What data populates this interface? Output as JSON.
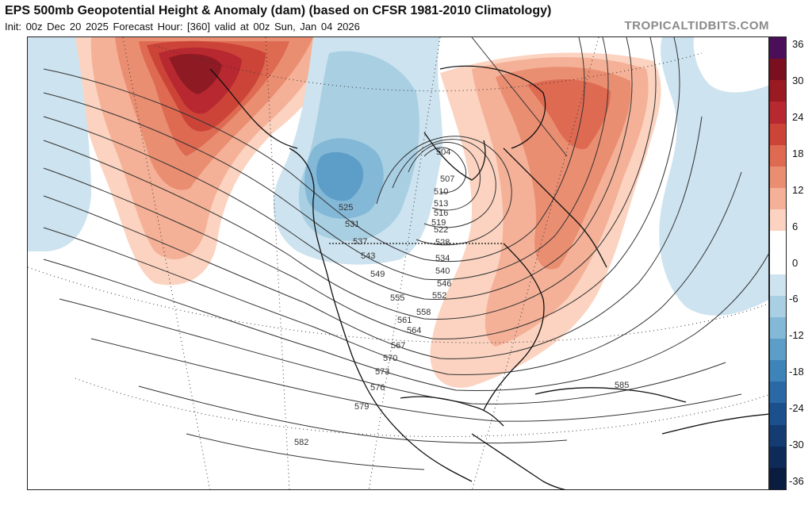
{
  "header": {
    "title": "EPS 500mb Geopotential Height & Anomaly (dam) (based on CFSR 1981-2010 Climatology)",
    "subtitle": "Init: 00z Dec 20 2025   Forecast Hour: [360]   valid at 00z Sun, Jan 04 2026",
    "watermark": "TROPICALTIDBITS.COM"
  },
  "colorbar": {
    "ticks": [
      "36",
      "30",
      "24",
      "18",
      "12",
      "6",
      "0",
      "-6",
      "-12",
      "-18",
      "-24",
      "-30",
      "-36"
    ],
    "colors": [
      "#4b0f5a",
      "#7a0f1f",
      "#9a1a22",
      "#b82830",
      "#cc4438",
      "#de6a52",
      "#ea8e72",
      "#f4b197",
      "#fbd3c0",
      "#ffffff",
      "#ffffff",
      "#cde3ef",
      "#a9cfe3",
      "#84b8d7",
      "#5c9ec8",
      "#3f84b9",
      "#2a69a5",
      "#1c508d",
      "#143b72",
      "#0e2a58",
      "#0a1c3f"
    ]
  },
  "contour_labels": [
    "504",
    "507",
    "510",
    "513",
    "516",
    "519",
    "522",
    "525",
    "528",
    "531",
    "534",
    "537",
    "540",
    "543",
    "546",
    "549",
    "552",
    "555",
    "558",
    "561",
    "564",
    "567",
    "570",
    "573",
    "576",
    "579",
    "582",
    "585"
  ]
}
